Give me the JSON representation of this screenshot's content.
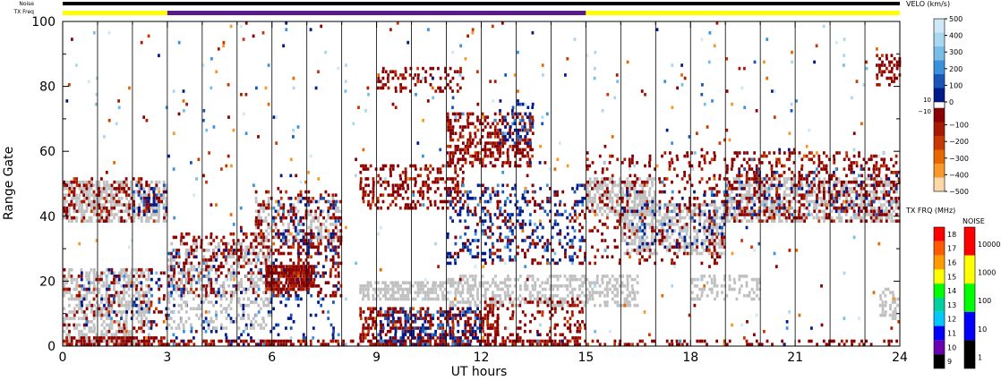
{
  "chart_data": {
    "type": "heatmap",
    "xlabel": "UT hours",
    "ylabel": "Range Gate",
    "xlim": [
      0,
      24
    ],
    "ylim": [
      0,
      100
    ],
    "xticks": [
      0,
      3,
      6,
      9,
      12,
      15,
      18,
      21,
      24
    ],
    "yticks": [
      0,
      20,
      40,
      60,
      80,
      100
    ],
    "scan_boundaries": [
      1,
      2,
      3,
      4,
      5,
      6,
      7,
      8,
      9,
      10,
      11,
      12,
      13,
      14,
      15,
      16,
      17,
      18,
      19,
      20,
      21,
      22,
      23
    ],
    "header": {
      "noise_label": "Noise",
      "txfreq_label": "TX Freq",
      "tx_segments": [
        {
          "start": 0,
          "end": 3,
          "color": "#ffff00"
        },
        {
          "start": 3,
          "end": 15,
          "color": "#5a1a8c"
        },
        {
          "start": 15,
          "end": 24,
          "color": "#ffff00"
        }
      ]
    },
    "echo_regions": [
      {
        "kind": "ground",
        "x0": 0.0,
        "x1": 3.0,
        "y0": 38,
        "y1": 51,
        "density": 0.55
      },
      {
        "kind": "neg",
        "x0": 0.0,
        "x1": 3.0,
        "y0": 38,
        "y1": 52,
        "density": 0.25
      },
      {
        "kind": "pos",
        "x0": 2.0,
        "x1": 3.0,
        "y0": 40,
        "y1": 50,
        "density": 0.2
      },
      {
        "kind": "ground",
        "x0": 0.0,
        "x1": 2.5,
        "y0": 0,
        "y1": 24,
        "density": 0.5
      },
      {
        "kind": "neg",
        "x0": 0.0,
        "x1": 3.0,
        "y0": 0,
        "y1": 3,
        "density": 0.7
      },
      {
        "kind": "neg",
        "x0": 0.0,
        "x1": 3.0,
        "y0": 4,
        "y1": 24,
        "density": 0.15
      },
      {
        "kind": "pos",
        "x0": 0.5,
        "x1": 3.0,
        "y0": 5,
        "y1": 24,
        "density": 0.06
      },
      {
        "kind": "neg",
        "x0": 3.0,
        "x1": 8.0,
        "y0": 15,
        "y1": 35,
        "density": 0.3
      },
      {
        "kind": "pos",
        "x0": 3.0,
        "x1": 8.0,
        "y0": 0,
        "y1": 30,
        "density": 0.1
      },
      {
        "kind": "ground",
        "x0": 3.0,
        "x1": 6.0,
        "y0": 5,
        "y1": 32,
        "density": 0.25
      },
      {
        "kind": "neg",
        "x0": 5.8,
        "x1": 7.2,
        "y0": 17,
        "y1": 25,
        "density": 0.8
      },
      {
        "kind": "neg",
        "x0": 3.0,
        "x1": 15.0,
        "y0": 0,
        "y1": 2,
        "density": 0.5
      },
      {
        "kind": "ground",
        "x0": 5.5,
        "x1": 8.0,
        "y0": 32,
        "y1": 46,
        "density": 0.35
      },
      {
        "kind": "neg",
        "x0": 5.5,
        "x1": 8.0,
        "y0": 30,
        "y1": 48,
        "density": 0.2
      },
      {
        "kind": "pos",
        "x0": 6.0,
        "x1": 8.0,
        "y0": 30,
        "y1": 46,
        "density": 0.1
      },
      {
        "kind": "neg",
        "x0": 8.5,
        "x1": 11.5,
        "y0": 42,
        "y1": 56,
        "density": 0.35
      },
      {
        "kind": "neg",
        "x0": 9.0,
        "x1": 11.5,
        "y0": 78,
        "y1": 86,
        "density": 0.25
      },
      {
        "kind": "neg",
        "x0": 11.0,
        "x1": 13.5,
        "y0": 55,
        "y1": 72,
        "density": 0.45
      },
      {
        "kind": "pos",
        "x0": 12.5,
        "x1": 13.5,
        "y0": 62,
        "y1": 76,
        "density": 0.3
      },
      {
        "kind": "pos",
        "x0": 11.0,
        "x1": 15.0,
        "y0": 25,
        "y1": 50,
        "density": 0.2
      },
      {
        "kind": "neg",
        "x0": 11.0,
        "x1": 15.0,
        "y0": 25,
        "y1": 50,
        "density": 0.1
      },
      {
        "kind": "ground",
        "x0": 8.5,
        "x1": 11.0,
        "y0": 14,
        "y1": 20,
        "density": 0.65
      },
      {
        "kind": "ground",
        "x0": 11.0,
        "x1": 16.5,
        "y0": 12,
        "y1": 22,
        "density": 0.5
      },
      {
        "kind": "neg",
        "x0": 8.5,
        "x1": 12.5,
        "y0": 0,
        "y1": 12,
        "density": 0.45
      },
      {
        "kind": "pos",
        "x0": 9.0,
        "x1": 12.0,
        "y0": 0,
        "y1": 12,
        "density": 0.3
      },
      {
        "kind": "neg",
        "x0": 12.0,
        "x1": 15.0,
        "y0": 0,
        "y1": 15,
        "density": 0.2
      },
      {
        "kind": "ground",
        "x0": 15.0,
        "x1": 17.0,
        "y0": 40,
        "y1": 52,
        "density": 0.6
      },
      {
        "kind": "ground",
        "x0": 16.0,
        "x1": 19.0,
        "y0": 28,
        "y1": 44,
        "density": 0.55
      },
      {
        "kind": "neg",
        "x0": 15.0,
        "x1": 19.0,
        "y0": 25,
        "y1": 60,
        "density": 0.15
      },
      {
        "kind": "pos",
        "x0": 16.0,
        "x1": 19.0,
        "y0": 30,
        "y1": 48,
        "density": 0.1
      },
      {
        "kind": "ground",
        "x0": 19.0,
        "x1": 24.0,
        "y0": 38,
        "y1": 52,
        "density": 0.55
      },
      {
        "kind": "neg",
        "x0": 19.0,
        "x1": 24.0,
        "y0": 38,
        "y1": 60,
        "density": 0.3
      },
      {
        "kind": "pos",
        "x0": 19.0,
        "x1": 24.0,
        "y0": 40,
        "y1": 55,
        "density": 0.08
      },
      {
        "kind": "ground",
        "x0": 18.0,
        "x1": 20.0,
        "y0": 14,
        "y1": 22,
        "density": 0.4
      },
      {
        "kind": "neg",
        "x0": 15.0,
        "x1": 24.0,
        "y0": 0,
        "y1": 2,
        "density": 0.35
      },
      {
        "kind": "ground",
        "x0": 23.4,
        "x1": 24.0,
        "y0": 8,
        "y1": 18,
        "density": 0.5
      },
      {
        "kind": "neg",
        "x0": 23.3,
        "x1": 24.0,
        "y0": 80,
        "y1": 90,
        "density": 0.35
      },
      {
        "kind": "mixed",
        "x0": 0.0,
        "x1": 24.0,
        "y0": 0,
        "y1": 100,
        "density": 0.015
      }
    ],
    "velocity_scale": {
      "title": "VELO (km/s)",
      "positive_ticks": [
        "500",
        "400",
        "300",
        "200",
        "100",
        "0"
      ],
      "split_labels": [
        "10",
        "−10"
      ],
      "negative_ticks": [
        "−100",
        "−200",
        "−300",
        "−400",
        "−500"
      ],
      "positive_colors": [
        "#cfe8f8",
        "#a8d8f0",
        "#78bde8",
        "#3a92dc",
        "#1a55b8",
        "#001a8a"
      ],
      "negative_colors": [
        "#8a0000",
        "#a81a00",
        "#c83800",
        "#e86800",
        "#f89828",
        "#ffd8a8"
      ]
    },
    "txfreq_scale": {
      "title": "TX FRQ (MHz)",
      "ticks": [
        "18",
        "17",
        "16",
        "15",
        "14",
        "13",
        "12",
        "11",
        "10",
        "9"
      ],
      "colors": [
        "#ff0000",
        "#ff5a00",
        "#ff9a00",
        "#ffff00",
        "#00ff00",
        "#00d0a0",
        "#00c8ff",
        "#0000ff",
        "#6a00b0",
        "#000000"
      ]
    },
    "noise_scale": {
      "title": "NOISE",
      "ticks": [
        "10000",
        "1000",
        "100",
        "10",
        "1"
      ],
      "colors": [
        "#ff0000",
        "#ffff00",
        "#00ff00",
        "#0000ff",
        "#000000"
      ]
    }
  }
}
